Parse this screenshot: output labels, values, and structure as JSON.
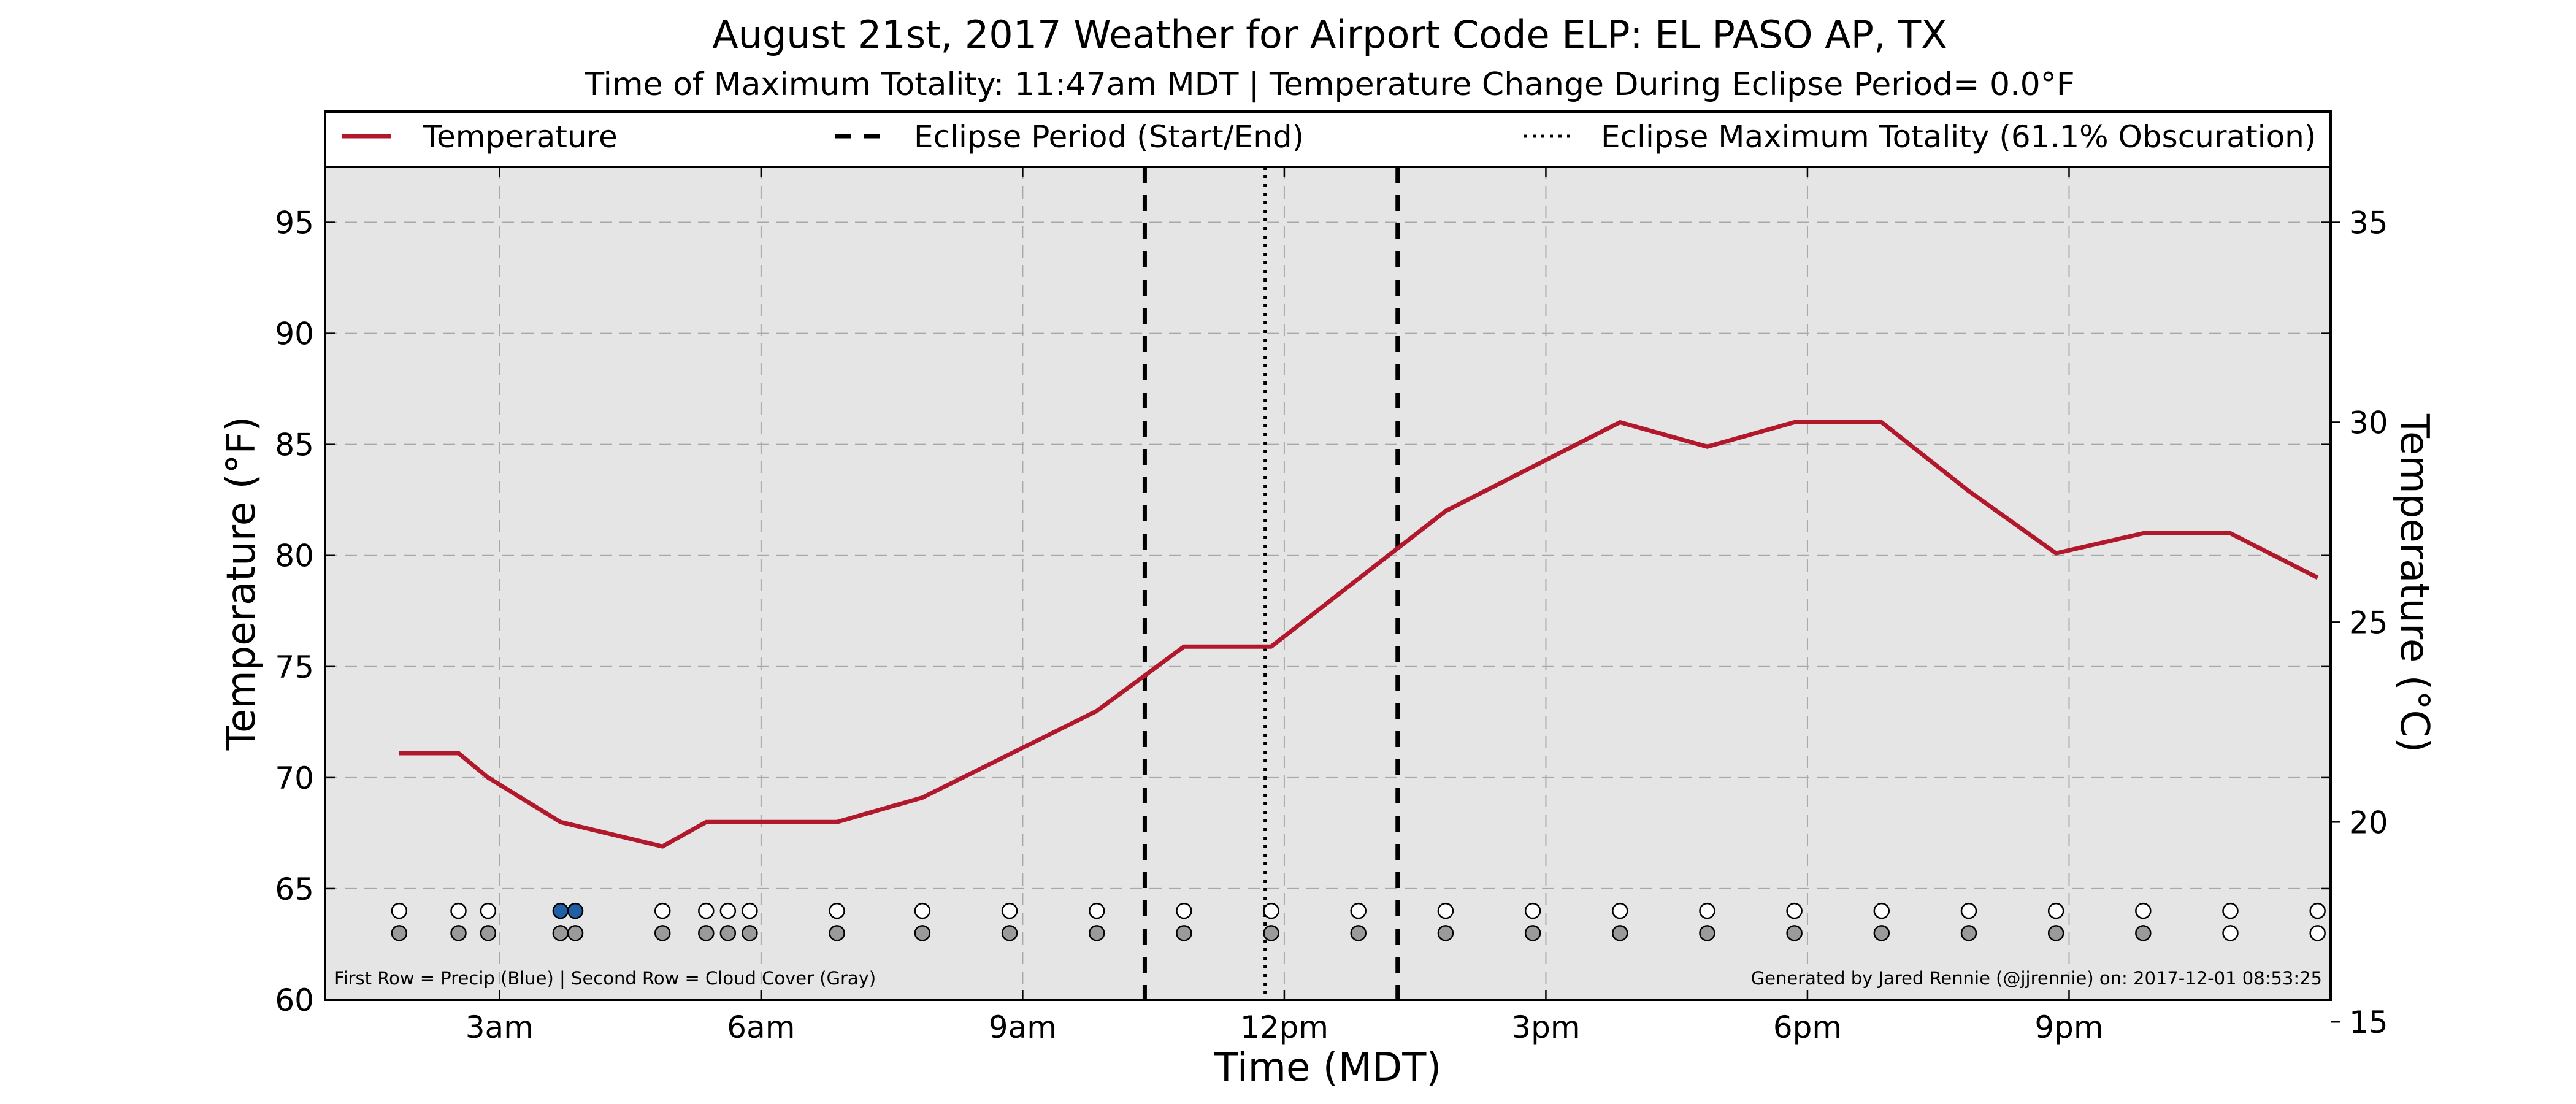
{
  "chart_data": {
    "type": "line",
    "title": "August 21st, 2017 Weather for Airport Code ELP: EL PASO AP, TX",
    "subtitle": "Time of Maximum Totality: 11:47am MDT | Temperature Change During Eclipse Period= 0.0°F",
    "xlabel": "Time (MDT)",
    "ylabel": "Temperature (°F)",
    "ylabel_right": "Temperature (°C)",
    "x_ticks": [
      "3am",
      "6am",
      "9am",
      "12pm",
      "3pm",
      "6pm",
      "9pm"
    ],
    "x_tick_hours": [
      3,
      6,
      9,
      12,
      15,
      18,
      21
    ],
    "xlim_hours": [
      1.0,
      24.0
    ],
    "ylim": [
      60,
      97.5
    ],
    "y_ticks": [
      60,
      65,
      70,
      75,
      80,
      85,
      90,
      95
    ],
    "y2lim": [
      15.5556,
      36.3889
    ],
    "y2_ticks": [
      15,
      20,
      25,
      30,
      35
    ],
    "grid": true,
    "legend_position": "top, spanning width",
    "legend": [
      {
        "label": "Temperature",
        "style": "solid",
        "color": "#b2182b"
      },
      {
        "label": "Eclipse Period (Start/End)",
        "style": "dashed",
        "color": "#000000"
      },
      {
        "label": "Eclipse Maximum Totality (61.1% Obscuration)",
        "style": "dotted",
        "color": "#000000"
      }
    ],
    "series": [
      {
        "name": "Temperature",
        "color": "#b2182b",
        "x_hours": [
          1.85,
          2.53,
          2.87,
          3.7,
          4.87,
          5.37,
          6.87,
          7.85,
          9.85,
          10.85,
          11.85,
          13.85,
          15.85,
          16.85,
          17.85,
          18.85,
          19.85,
          20.85,
          21.85,
          22.85,
          23.85
        ],
        "values": [
          71.1,
          71.1,
          70.0,
          68.0,
          66.9,
          68.0,
          68.0,
          69.1,
          73.0,
          75.9,
          75.9,
          82.0,
          86.0,
          84.9,
          86.0,
          86.0,
          82.9,
          80.1,
          81.0,
          81.0,
          79.0
        ]
      }
    ],
    "eclipse_start_hours": 10.4,
    "eclipse_end_hours": 13.3,
    "eclipse_max_hours": 11.78,
    "obs_times_hours": [
      1.85,
      2.53,
      2.87,
      3.7,
      3.87,
      4.87,
      5.37,
      5.62,
      5.87,
      6.87,
      7.85,
      8.85,
      9.85,
      10.85,
      11.85,
      12.85,
      13.85,
      14.85,
      15.85,
      16.85,
      17.85,
      18.85,
      19.85,
      20.85,
      21.85,
      22.85,
      23.85
    ],
    "precip_row": [
      0,
      0,
      0,
      1,
      1,
      0,
      0,
      0,
      0,
      0,
      0,
      0,
      0,
      0,
      0,
      0,
      0,
      0,
      0,
      0,
      0,
      0,
      0,
      0,
      0,
      0,
      0
    ],
    "cloud_row": [
      1,
      1,
      1,
      1,
      1,
      1,
      1,
      1,
      1,
      1,
      1,
      1,
      1,
      1,
      1,
      1,
      1,
      1,
      1,
      1,
      1,
      1,
      1,
      1,
      1,
      0,
      0
    ],
    "marker_colors": {
      "precip": "#1f5fa6",
      "cloud": "#9a9a9a",
      "none": "#ffffff"
    },
    "footnote_left": "First Row = Precip (Blue) | Second Row = Cloud Cover (Gray)",
    "footnote_right": "Generated by Jared Rennie (@jjrennie) on: 2017-12-01 08:53:25"
  }
}
